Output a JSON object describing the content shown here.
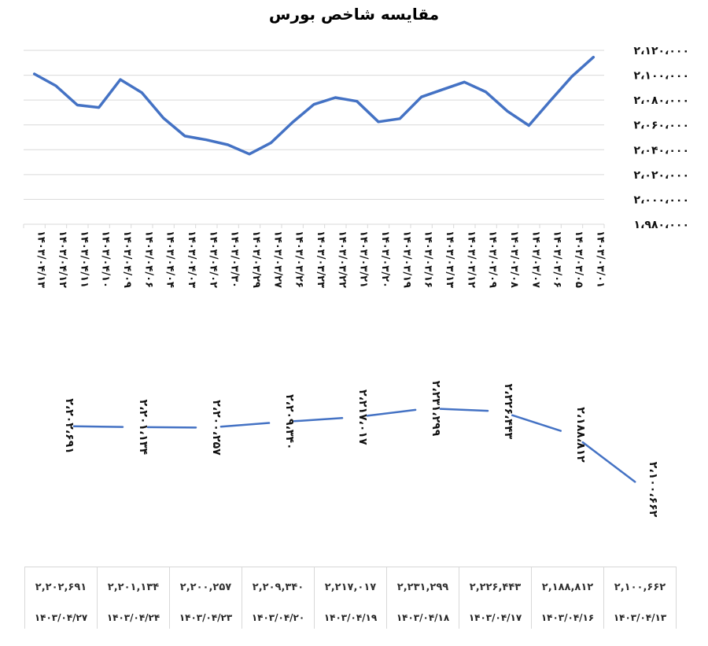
{
  "chart_data": [
    {
      "type": "line",
      "title": "مقایسه شاخص بورس",
      "xlabel": "",
      "ylabel": "",
      "ylim": [
        1980000,
        2120000
      ],
      "y_ticks": [
        "۲،۱۲۰،۰۰۰",
        "۲،۱۰۰،۰۰۰",
        "۲،۰۸۰،۰۰۰",
        "۲،۰۶۰،۰۰۰",
        "۲،۰۴۰،۰۰۰",
        "۲،۰۲۰،۰۰۰",
        "۲،۰۰۰،۰۰۰",
        "۱،۹۸۰،۰۰۰"
      ],
      "y_tick_values": [
        2120000,
        2100000,
        2080000,
        2060000,
        2040000,
        2020000,
        2000000,
        1980000
      ],
      "grid": true,
      "legend": null,
      "color": "#4472C4",
      "categories": [
        "۱۴۰۳/۰۴/۱۳",
        "۱۴۰۳/۰۴/۱۲",
        "۱۴۰۳/۰۴/۱۱",
        "۱۴۰۳/۰۴/۱۰",
        "۱۴۰۳/۰۴/۰۹",
        "۱۴۰۳/۰۴/۰۶",
        "۱۴۰۳/۰۴/۰۴",
        "۱۴۰۳/۰۴/۰۳",
        "۱۴۰۳/۰۴/۰۲",
        "۱۴۰۳/۰۳/۳۰",
        "۱۴۰۳/۰۳/۲۹",
        "۱۴۰۳/۰۳/۲۷",
        "۱۴۰۳/۰۳/۲۶",
        "۱۴۰۳/۰۳/۲۳",
        "۱۴۰۳/۰۳/۲۲",
        "۱۴۰۳/۰۳/۲۱",
        "۱۴۰۳/۰۳/۲۰",
        "۱۴۰۳/۰۳/۱۹",
        "۱۴۰۳/۰۳/۱۶",
        "۱۴۰۳/۰۳/۱۳",
        "۱۴۰۳/۰۳/۱۲",
        "۱۴۰۳/۰۳/۰۹",
        "۱۴۰۳/۰۳/۰۸",
        "۱۴۰۳/۰۳/۰۷",
        "۱۴۰۳/۰۳/۰۶",
        "۱۴۰۳/۰۳/۰۵",
        "۱۴۰۳/۰۳/۰۱"
      ],
      "values": [
        2101000,
        2091500,
        2076000,
        2074000,
        2096500,
        2086000,
        2065500,
        2051000,
        2048000,
        2044000,
        2036500,
        2045500,
        2062000,
        2076500,
        2082000,
        2079000,
        2062500,
        2065000,
        2082500,
        2088500,
        2094500,
        2086500,
        2071000,
        2059500,
        2079500,
        2099000,
        2114500
      ]
    },
    {
      "type": "line",
      "title": "",
      "grid": false,
      "color": "#4472C4",
      "categories": [
        "۱۴۰۳/۰۴/۲۷",
        "۱۴۰۳/۰۴/۲۴",
        "۱۴۰۳/۰۴/۲۳",
        "۱۴۰۳/۰۴/۲۰",
        "۱۴۰۳/۰۴/۱۹",
        "۱۴۰۳/۰۴/۱۸",
        "۱۴۰۳/۰۴/۱۷",
        "۱۴۰۳/۰۴/۱۶",
        "۱۴۰۳/۰۴/۱۳"
      ],
      "values": [
        2202691,
        2201134,
        2200257,
        2209340,
        2217017,
        2231299,
        2226443,
        2188812,
        2100662
      ],
      "data_labels": [
        "۲،۲۰۲،۶۹۱",
        "۲،۲۰۱،۱۳۴",
        "۲،۲۰۰،۲۵۷",
        "۲،۲۰۹،۳۴۰",
        "۲،۲۱۷،۰۱۷",
        "۲،۲۳۱،۲۹۹",
        "۲،۲۲۶،۴۴۳",
        "۲،۱۸۸،۸۱۲",
        "۲،۱۰۰،۶۶۲"
      ]
    },
    {
      "type": "table",
      "columns": [
        "۱۴۰۳/۰۴/۲۷",
        "۱۴۰۳/۰۴/۲۴",
        "۱۴۰۳/۰۴/۲۳",
        "۱۴۰۳/۰۴/۲۰",
        "۱۴۰۳/۰۴/۱۹",
        "۱۴۰۳/۰۴/۱۸",
        "۱۴۰۳/۰۴/۱۷",
        "۱۴۰۳/۰۴/۱۶",
        "۱۴۰۳/۰۴/۱۳"
      ],
      "values": [
        "۲,۲۰۲,۶۹۱",
        "۲,۲۰۱,۱۳۴",
        "۲,۲۰۰,۲۵۷",
        "۲,۲۰۹,۳۴۰",
        "۲,۲۱۷,۰۱۷",
        "۲,۲۳۱,۲۹۹",
        "۲,۲۲۶,۴۴۳",
        "۲,۱۸۸,۸۱۲",
        "۲,۱۰۰,۶۶۲"
      ]
    }
  ],
  "page": {
    "title": "مقایسه شاخص بورس"
  },
  "table": {
    "values": [
      "۲,۲۰۲,۶۹۱",
      "۲,۲۰۱,۱۳۴",
      "۲,۲۰۰,۲۵۷",
      "۲,۲۰۹,۳۴۰",
      "۲,۲۱۷,۰۱۷",
      "۲,۲۳۱,۲۹۹",
      "۲,۲۲۶,۴۴۳",
      "۲,۱۸۸,۸۱۲",
      "۲,۱۰۰,۶۶۲"
    ],
    "dates": [
      "۱۴۰۳/۰۴/۲۷",
      "۱۴۰۳/۰۴/۲۴",
      "۱۴۰۳/۰۴/۲۳",
      "۱۴۰۳/۰۴/۲۰",
      "۱۴۰۳/۰۴/۱۹",
      "۱۴۰۳/۰۴/۱۸",
      "۱۴۰۳/۰۴/۱۷",
      "۱۴۰۳/۰۴/۱۶",
      "۱۴۰۳/۰۴/۱۳"
    ]
  }
}
